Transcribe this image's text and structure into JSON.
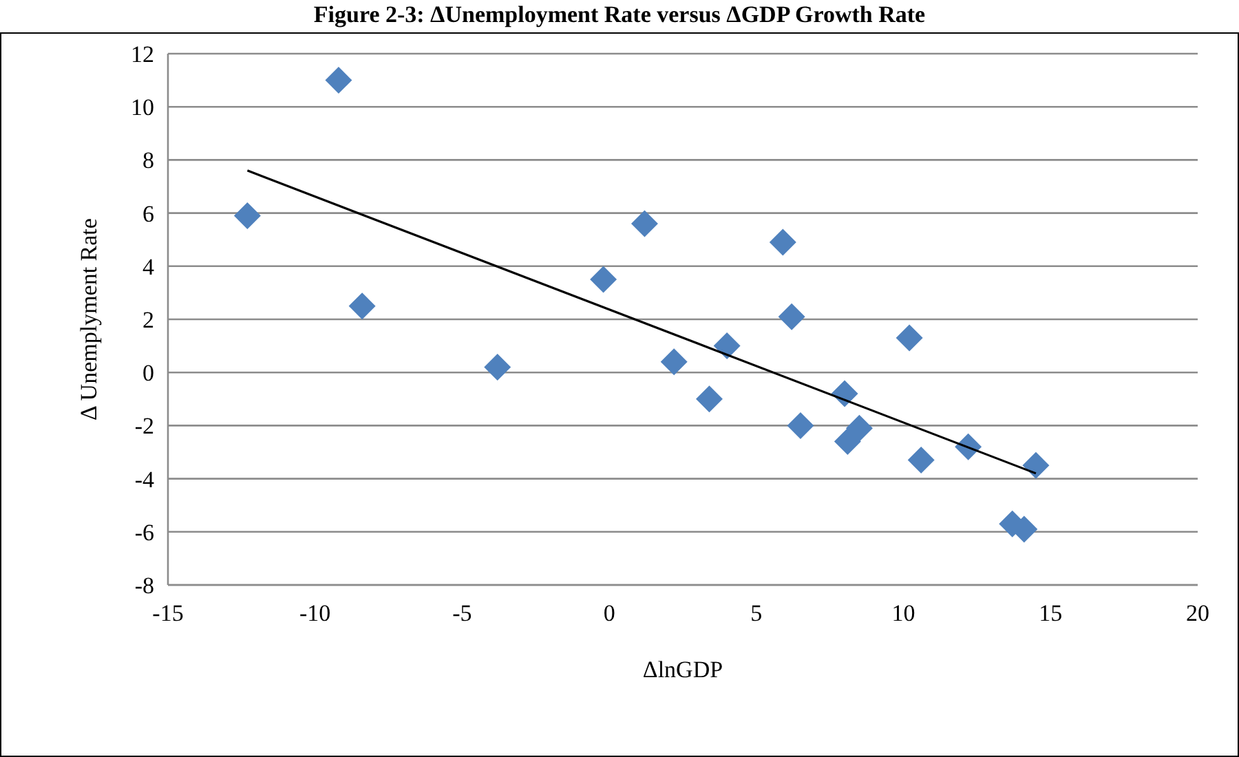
{
  "chart_data": {
    "type": "scatter",
    "title": "Figure 2-3: ΔUnemployment Rate versus ΔGDP Growth Rate",
    "xlabel": "ΔlnGDP",
    "ylabel": "Δ Unemplyment  Rate",
    "xlim": [
      -15,
      20
    ],
    "xticks": [
      -15,
      -10,
      -5,
      0,
      5,
      10,
      15,
      20
    ],
    "ylim": [
      -8,
      12
    ],
    "yticks": [
      -8,
      -6,
      -4,
      -2,
      0,
      2,
      4,
      6,
      8,
      10,
      12
    ],
    "grid": "y",
    "series": [
      {
        "color": "#4f81bd",
        "marker": "diamond",
        "x": [
          -12.3,
          -9.2,
          -8.4,
          -3.8,
          -0.2,
          1.2,
          2.2,
          3.4,
          4.0,
          5.9,
          6.2,
          6.5,
          8.0,
          8.1,
          8.5,
          10.2,
          10.6,
          12.2,
          13.7,
          14.1,
          14.5
        ],
        "values": [
          5.9,
          11.0,
          2.5,
          0.2,
          3.5,
          5.6,
          0.4,
          -1.0,
          1.0,
          4.9,
          2.1,
          -2.0,
          -0.8,
          -2.6,
          -2.1,
          1.3,
          -3.3,
          -2.8,
          -5.7,
          -5.9,
          -3.5
        ]
      },
      {
        "type": "line",
        "marker": "none",
        "color": "#000000",
        "x": [
          -12.3,
          14.5
        ],
        "values": [
          7.6,
          -3.8
        ]
      }
    ]
  }
}
